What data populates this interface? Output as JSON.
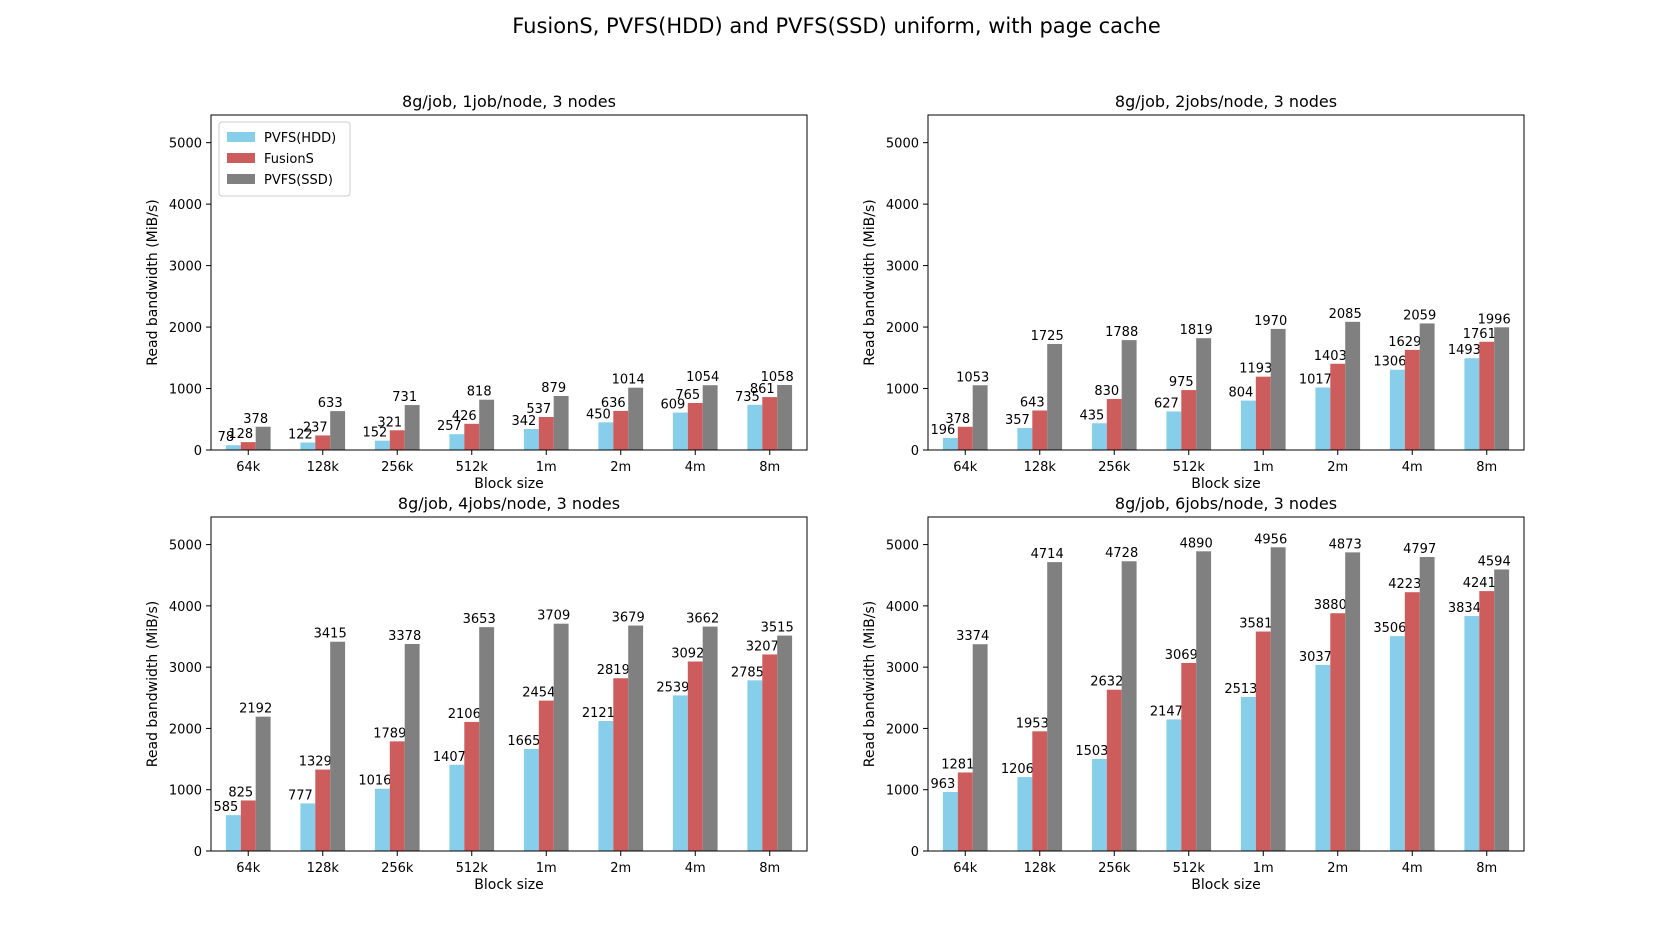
{
  "figure": {
    "suptitle": "FusionS, PVFS(HDD) and PVFS(SSD) uniform, with page cache",
    "colors": {
      "PVFS(HDD)": "#87ceeb",
      "FusionS": "#cd5c5c",
      "PVFS(SSD)": "#808080"
    }
  },
  "chart_data": [
    {
      "type": "bar",
      "title": "8g/job, 1job/node, 3 nodes",
      "xlabel": "Block size",
      "ylabel": "Read bandwidth (MiB/s)",
      "ylim": [
        0,
        5450
      ],
      "yticks": [
        0,
        1000,
        2000,
        3000,
        4000,
        5000
      ],
      "legend": "upper-left",
      "categories": [
        "64k",
        "128k",
        "256k",
        "512k",
        "1m",
        "2m",
        "4m",
        "8m"
      ],
      "series": [
        {
          "name": "PVFS(HDD)",
          "values": [
            78,
            122,
            152,
            257,
            342,
            450,
            609,
            735
          ]
        },
        {
          "name": "FusionS",
          "values": [
            128,
            237,
            321,
            426,
            537,
            636,
            765,
            861
          ]
        },
        {
          "name": "PVFS(SSD)",
          "values": [
            378,
            633,
            731,
            818,
            879,
            1014,
            1054,
            1058
          ]
        }
      ]
    },
    {
      "type": "bar",
      "title": "8g/job, 2jobs/node, 3 nodes",
      "xlabel": "Block size",
      "ylabel": "Read bandwidth (MiB/s)",
      "ylim": [
        0,
        5450
      ],
      "yticks": [
        0,
        1000,
        2000,
        3000,
        4000,
        5000
      ],
      "categories": [
        "64k",
        "128k",
        "256k",
        "512k",
        "1m",
        "2m",
        "4m",
        "8m"
      ],
      "series": [
        {
          "name": "PVFS(HDD)",
          "values": [
            196,
            357,
            435,
            627,
            804,
            1017,
            1306,
            1493
          ]
        },
        {
          "name": "FusionS",
          "values": [
            378,
            643,
            830,
            975,
            1193,
            1403,
            1629,
            1761
          ]
        },
        {
          "name": "PVFS(SSD)",
          "values": [
            1053,
            1725,
            1788,
            1819,
            1970,
            2085,
            2059,
            1996
          ]
        }
      ]
    },
    {
      "type": "bar",
      "title": "8g/job, 4jobs/node, 3 nodes",
      "xlabel": "Block size",
      "ylabel": "Read bandwidth (MiB/s)",
      "ylim": [
        0,
        5450
      ],
      "yticks": [
        0,
        1000,
        2000,
        3000,
        4000,
        5000
      ],
      "categories": [
        "64k",
        "128k",
        "256k",
        "512k",
        "1m",
        "2m",
        "4m",
        "8m"
      ],
      "series": [
        {
          "name": "PVFS(HDD)",
          "values": [
            585,
            777,
            1016,
            1407,
            1665,
            2121,
            2539,
            2785
          ]
        },
        {
          "name": "FusionS",
          "values": [
            825,
            1329,
            1789,
            2106,
            2454,
            2819,
            3092,
            3207
          ]
        },
        {
          "name": "PVFS(SSD)",
          "values": [
            2192,
            3415,
            3378,
            3653,
            3709,
            3679,
            3662,
            3515
          ]
        }
      ]
    },
    {
      "type": "bar",
      "title": "8g/job, 6jobs/node, 3 nodes",
      "xlabel": "Block size",
      "ylabel": "Read bandwidth (MiB/s)",
      "ylim": [
        0,
        5450
      ],
      "yticks": [
        0,
        1000,
        2000,
        3000,
        4000,
        5000
      ],
      "categories": [
        "64k",
        "128k",
        "256k",
        "512k",
        "1m",
        "2m",
        "4m",
        "8m"
      ],
      "series": [
        {
          "name": "PVFS(HDD)",
          "values": [
            963,
            1206,
            1503,
            2147,
            2513,
            3037,
            3506,
            3834
          ]
        },
        {
          "name": "FusionS",
          "values": [
            1281,
            1953,
            2632,
            3069,
            3581,
            3880,
            4223,
            4241
          ]
        },
        {
          "name": "PVFS(SSD)",
          "values": [
            3374,
            4714,
            4728,
            4890,
            4956,
            4873,
            4797,
            4594
          ]
        }
      ]
    }
  ]
}
